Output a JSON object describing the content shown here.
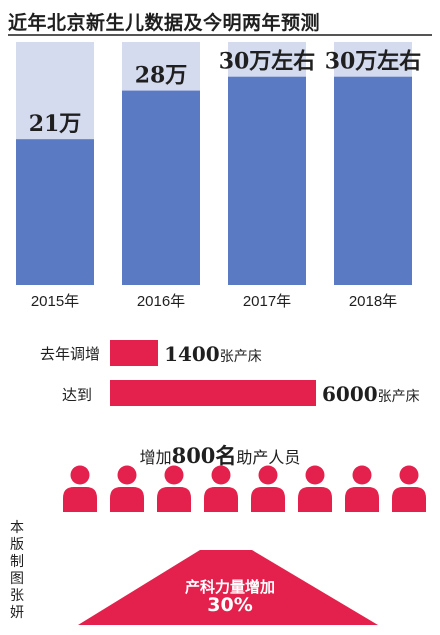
{
  "title": "近年北京新生儿数据及今明两年预测",
  "chart_data": {
    "type": "bar",
    "categories": [
      "2015年",
      "2016年",
      "2017年",
      "2018年"
    ],
    "values": [
      21,
      28,
      30,
      30
    ],
    "value_labels": [
      "21万",
      "28万",
      "30万左右",
      "30万左右"
    ],
    "unit": "万",
    "ylim": [
      0,
      35
    ],
    "colors": {
      "bar": "#5a7ac4",
      "background": "#d4dbef"
    }
  },
  "beds": {
    "rows": [
      {
        "label": "去年调增",
        "value": 1400,
        "value_text": "1400",
        "unit": "张产床"
      },
      {
        "label": "达到",
        "value": 6000,
        "value_text": "6000",
        "unit": "张产床"
      }
    ],
    "max": 6000,
    "color": "#e4214c"
  },
  "staff": {
    "prefix": "增加",
    "number": "800",
    "suffix_big": "名",
    "suffix": "助产人员",
    "icon_count": 8,
    "icon": "person-icon"
  },
  "capacity": {
    "label": "产科力量增加",
    "value": "30%"
  },
  "credit": "本版制图张妍"
}
